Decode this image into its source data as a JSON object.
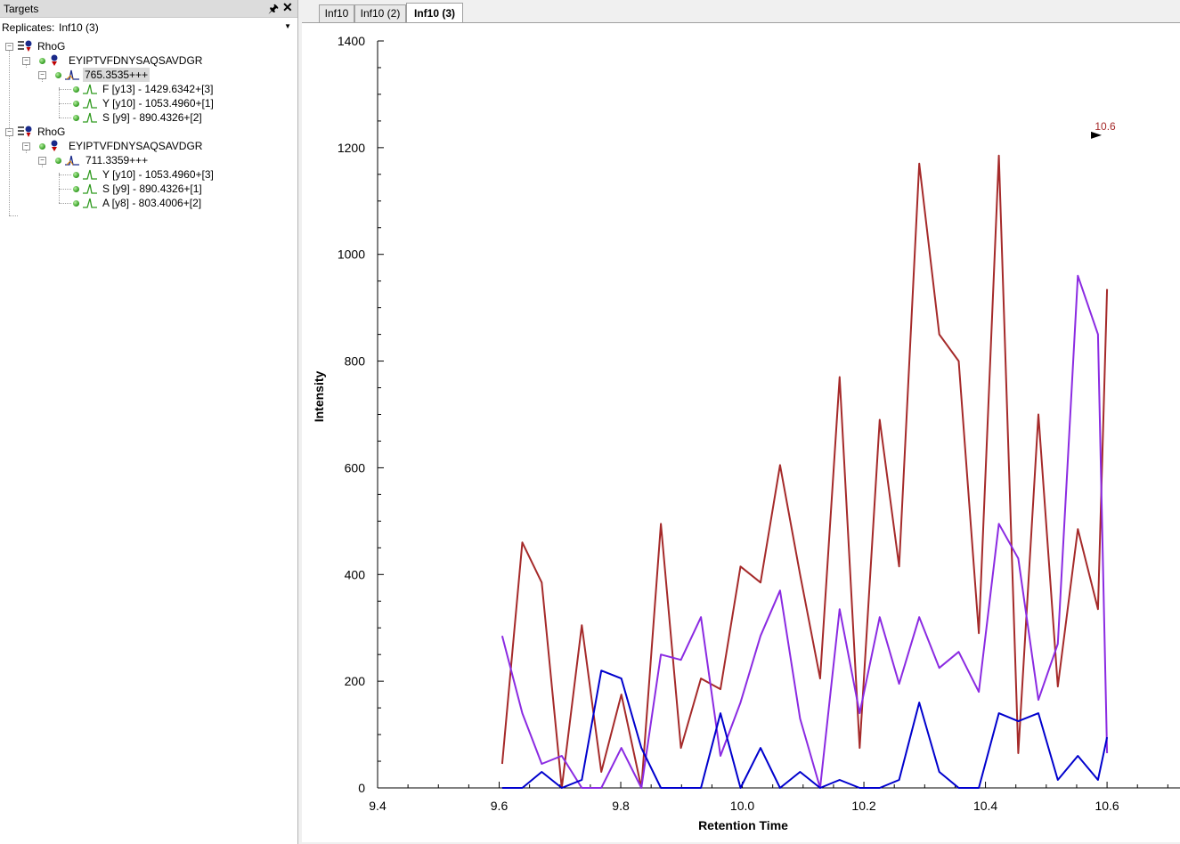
{
  "panel": {
    "title": "Targets",
    "replicates_label": "Replicates:",
    "replicates_value": "Inf10 (3)"
  },
  "tree": {
    "groups": [
      {
        "protein": "RhoG",
        "peptide": "EYIPTVFDNYSAQSAVDGR",
        "precursor": "765.3535+++",
        "transitions": [
          "F [y13] - 1429.6342+[3]",
          "Y [y10] - 1053.4960+[1]",
          "S [y9] - 890.4326+[2]"
        ]
      },
      {
        "protein": "RhoG",
        "peptide": "EYIPTVFDNYSAQSAVDGR",
        "precursor": "711.3359+++",
        "transitions": [
          "Y [y10] - 1053.4960+[3]",
          "S [y9] - 890.4326+[1]",
          "A [y8] - 803.4006+[2]"
        ]
      }
    ]
  },
  "tabs": [
    "Inf10",
    "Inf10 (2)",
    "Inf10 (3)"
  ],
  "active_tab": 2,
  "chart_data": {
    "type": "line",
    "xlabel": "Retention Time",
    "ylabel": "Intensity",
    "xlim": [
      9.4,
      10.72
    ],
    "ylim": [
      0,
      1400
    ],
    "x_ticks": [
      "9.4",
      "9.6",
      "9.8",
      "10.0",
      "10.2",
      "10.4",
      "10.6"
    ],
    "y_ticks": [
      "0",
      "200",
      "400",
      "600",
      "800",
      "1000",
      "1200",
      "1400"
    ],
    "annotation": {
      "text": "10.6",
      "x": 10.597,
      "y": 1220
    },
    "series": [
      {
        "color": "#a52a2a",
        "x": [
          9.605,
          9.638,
          9.67,
          9.703,
          9.736,
          9.768,
          9.801,
          9.834,
          9.866,
          9.899,
          9.932,
          9.964,
          9.997,
          10.03,
          10.062,
          10.095,
          10.128,
          10.16,
          10.193,
          10.226,
          10.258,
          10.291,
          10.324,
          10.356,
          10.389,
          10.422,
          10.454,
          10.487,
          10.519,
          10.552,
          10.585,
          10.6
        ],
        "y": [
          45,
          460,
          385,
          0,
          305,
          30,
          175,
          0,
          495,
          75,
          205,
          185,
          415,
          385,
          605,
          400,
          205,
          770,
          75,
          690,
          415,
          1170,
          850,
          800,
          290,
          1185,
          65,
          700,
          190,
          485,
          335,
          935
        ]
      },
      {
        "color": "#8b2be2",
        "x": [
          9.605,
          9.638,
          9.67,
          9.703,
          9.736,
          9.768,
          9.801,
          9.834,
          9.866,
          9.899,
          9.932,
          9.964,
          9.997,
          10.03,
          10.062,
          10.095,
          10.128,
          10.16,
          10.193,
          10.226,
          10.258,
          10.291,
          10.324,
          10.356,
          10.389,
          10.422,
          10.454,
          10.487,
          10.519,
          10.552,
          10.585,
          10.6
        ],
        "y": [
          285,
          140,
          45,
          60,
          0,
          0,
          75,
          0,
          250,
          240,
          320,
          60,
          160,
          285,
          370,
          130,
          0,
          335,
          140,
          320,
          195,
          320,
          225,
          255,
          180,
          495,
          430,
          165,
          270,
          960,
          850,
          65
        ]
      },
      {
        "color": "#0000cd",
        "x": [
          9.605,
          9.638,
          9.67,
          9.703,
          9.736,
          9.768,
          9.801,
          9.834,
          9.866,
          9.899,
          9.932,
          9.964,
          9.997,
          10.03,
          10.062,
          10.095,
          10.128,
          10.16,
          10.193,
          10.226,
          10.258,
          10.291,
          10.324,
          10.356,
          10.389,
          10.422,
          10.454,
          10.487,
          10.519,
          10.552,
          10.585,
          10.6
        ],
        "y": [
          0,
          0,
          30,
          0,
          15,
          220,
          205,
          75,
          0,
          0,
          0,
          140,
          0,
          75,
          0,
          30,
          0,
          15,
          0,
          0,
          15,
          160,
          30,
          0,
          0,
          140,
          125,
          140,
          15,
          60,
          15,
          95
        ]
      }
    ]
  }
}
